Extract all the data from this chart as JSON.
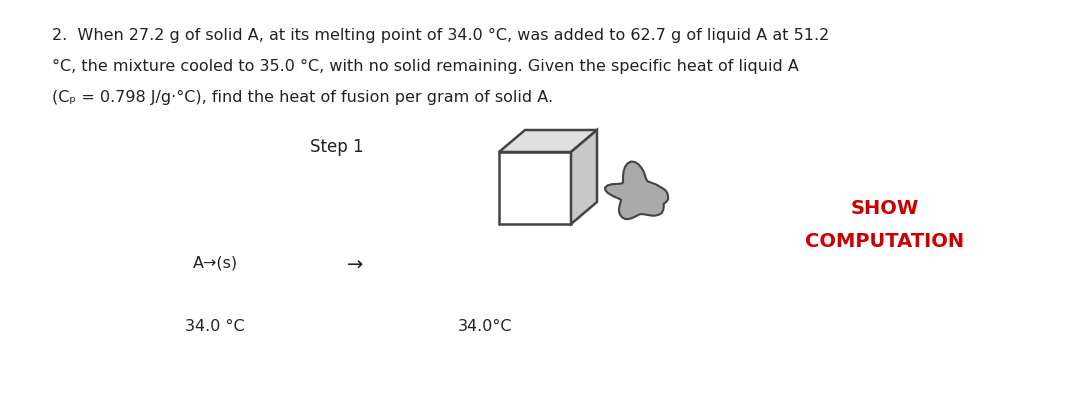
{
  "background_color": "#ffffff",
  "fig_width": 10.74,
  "fig_height": 4.14,
  "dpi": 100,
  "question_line1": "2.  When 27.2 g of solid A, at its melting point of 34.0 °C, was added to 62.7 g of liquid A at 51.2",
  "question_line2": "°C, the mixture cooled to 35.0 °C, with no solid remaining. Given the specific heat of liquid A",
  "question_line3": "(Cₚ = 0.798 J/g·°C), find the heat of fusion per gram of solid A.",
  "step_label": "Step 1",
  "reaction_label": "A→(s)",
  "arrow_label": "→",
  "show_label": "SHOW",
  "computation_label": "COMPUTATION",
  "temp_left": "34.0 °C",
  "temp_right": "34.0°C",
  "show_color": "#cc0000",
  "computation_color": "#cc0000",
  "text_color": "#222222",
  "cube_front_color": "#ffffff",
  "cube_top_color": "#e0e0e0",
  "cube_right_color": "#c8c8c8",
  "cube_border_color": "#444444",
  "blob_fill_color": "#aaaaaa",
  "blob_border_color": "#444444",
  "q_fontsize": 11.5,
  "step_fontsize": 12,
  "label_fontsize": 11.5,
  "show_fontsize": 14,
  "comp_fontsize": 14
}
